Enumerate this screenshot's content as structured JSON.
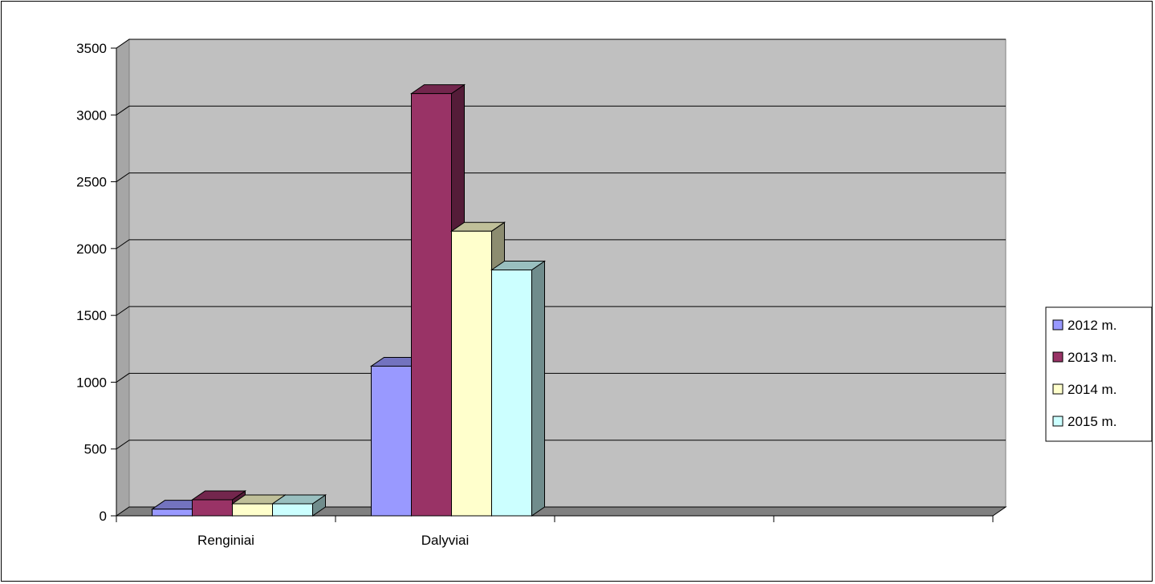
{
  "chart_data": {
    "type": "bar",
    "categories": [
      "Renginiai",
      "Dalyviai",
      "",
      ""
    ],
    "series": [
      {
        "name": "2012 m.",
        "values": [
          50,
          1120,
          null,
          null
        ],
        "color": "#9999ff"
      },
      {
        "name": "2013 m.",
        "values": [
          120,
          3160,
          null,
          null
        ],
        "color": "#993366"
      },
      {
        "name": "2014 m.",
        "values": [
          90,
          2130,
          null,
          null
        ],
        "color": "#ffffcc"
      },
      {
        "name": "2015 m.",
        "values": [
          90,
          1840,
          null,
          null
        ],
        "color": "#ccffff"
      }
    ],
    "yticks": [
      "0",
      "500",
      "1000",
      "1500",
      "2000",
      "2500",
      "3000",
      "3500"
    ],
    "ylim": [
      0,
      3500
    ],
    "grid": true,
    "legend": "right",
    "style": "3d-clustered-column",
    "wall_color": "#c0c0c0"
  }
}
